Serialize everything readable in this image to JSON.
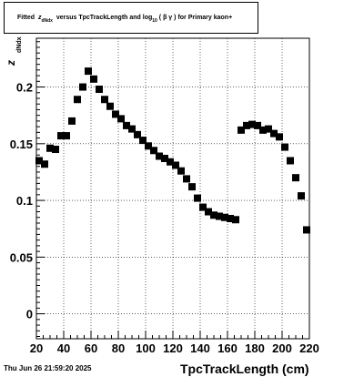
{
  "title": {
    "prefix": "Fitted",
    "z_symbol": "z",
    "z_subscript": "dNdx",
    "middle": "versus TpcTrackLength and log",
    "log_subscript": "10",
    "paren_open": "(",
    "beta_gamma": "β γ",
    "paren_close": ")",
    "suffix": "for Primary kaon+"
  },
  "timestamp": "Thu Jun 26 21:59:20 2025",
  "chart_data": {
    "type": "scatter",
    "xlabel": "TpcTrackLength (cm)",
    "ylabel": "z",
    "ylabel_subscript": "dNdx",
    "xlim": [
      20,
      220
    ],
    "ylim": [
      -0.022,
      0.243
    ],
    "x_ticks": [
      20,
      40,
      60,
      80,
      100,
      120,
      140,
      160,
      180,
      200,
      220
    ],
    "y_ticks": [
      0,
      0.05,
      0.1,
      0.15,
      0.2
    ],
    "y_tick_labels": [
      "0",
      "0.05",
      "0.1",
      "0.15",
      "0.2"
    ],
    "grid": true,
    "marker": "square",
    "marker_color": "#000000",
    "points": [
      [
        22,
        0.135
      ],
      [
        26,
        0.132
      ],
      [
        30,
        0.146
      ],
      [
        34,
        0.145
      ],
      [
        38,
        0.157
      ],
      [
        42,
        0.157
      ],
      [
        46,
        0.17
      ],
      [
        50,
        0.189
      ],
      [
        54,
        0.2
      ],
      [
        58,
        0.214
      ],
      [
        62,
        0.207
      ],
      [
        66,
        0.198
      ],
      [
        70,
        0.189
      ],
      [
        74,
        0.183
      ],
      [
        78,
        0.176
      ],
      [
        82,
        0.172
      ],
      [
        86,
        0.166
      ],
      [
        90,
        0.163
      ],
      [
        94,
        0.158
      ],
      [
        98,
        0.153
      ],
      [
        102,
        0.148
      ],
      [
        106,
        0.144
      ],
      [
        110,
        0.139
      ],
      [
        114,
        0.137
      ],
      [
        118,
        0.134
      ],
      [
        122,
        0.131
      ],
      [
        126,
        0.126
      ],
      [
        130,
        0.119
      ],
      [
        134,
        0.112
      ],
      [
        138,
        0.102
      ],
      [
        142,
        0.094
      ],
      [
        146,
        0.09
      ],
      [
        150,
        0.087
      ],
      [
        154,
        0.086
      ],
      [
        158,
        0.085
      ],
      [
        162,
        0.084
      ],
      [
        166,
        0.083
      ],
      [
        170,
        0.162
      ],
      [
        174,
        0.166
      ],
      [
        178,
        0.167
      ],
      [
        182,
        0.166
      ],
      [
        186,
        0.162
      ],
      [
        190,
        0.163
      ],
      [
        194,
        0.159
      ],
      [
        198,
        0.156
      ],
      [
        202,
        0.147
      ],
      [
        206,
        0.135
      ],
      [
        210,
        0.12
      ],
      [
        214,
        0.104
      ],
      [
        218,
        0.074
      ]
    ]
  }
}
